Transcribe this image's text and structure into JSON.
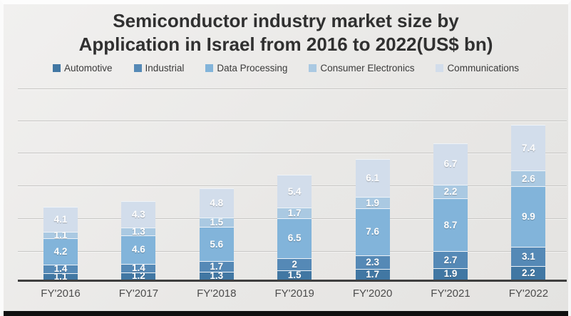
{
  "title": {
    "line1": "Semiconductor industry market size by",
    "line2": "Application in Israel from 2016 to 2022(US$ bn)"
  },
  "chart_data": {
    "type": "bar",
    "stacked": true,
    "title": "Semiconductor industry market size by Application in Israel from 2016 to 2022(US$ bn)",
    "xlabel": "",
    "ylabel": "",
    "units": "US$ bn",
    "legend_position": "top",
    "grid": true,
    "data_labels": true,
    "categories": [
      "FY'2016",
      "FY'2017",
      "FY'2018",
      "FY'2019",
      "FY'2020",
      "FY'2021",
      "FY'2022"
    ],
    "series": [
      {
        "name": "Automotive",
        "color": "#4177a3",
        "values": [
          1.1,
          1.2,
          1.3,
          1.5,
          1.7,
          1.9,
          2.2
        ]
      },
      {
        "name": "Industrial",
        "color": "#5589b6",
        "values": [
          1.4,
          1.4,
          1.7,
          2,
          2.3,
          2.7,
          3.1
        ]
      },
      {
        "name": "Data Processing",
        "color": "#82b4da",
        "values": [
          4.2,
          4.6,
          5.6,
          6.5,
          7.6,
          8.7,
          9.9
        ]
      },
      {
        "name": "Consumer Electronics",
        "color": "#aac9e2",
        "values": [
          1.1,
          1.3,
          1.5,
          1.7,
          1.9,
          2.2,
          2.6
        ]
      },
      {
        "name": "Communications",
        "color": "#d2ddeb",
        "values": [
          4.1,
          4.3,
          4.8,
          5.4,
          6.1,
          6.7,
          7.4
        ]
      }
    ],
    "totals": [
      11.9,
      12.8,
      14.9,
      17.1,
      19.6,
      22.2,
      25.2
    ]
  }
}
